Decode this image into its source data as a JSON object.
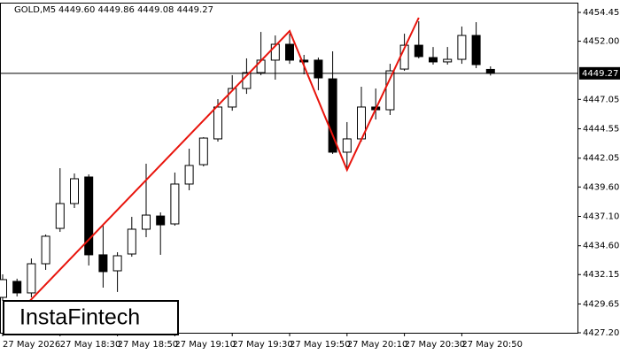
{
  "chart_data": {
    "type": "candlestick",
    "title": "GOLD,M5",
    "quote": "4449.60 4449.86 4449.08 4449.27",
    "logo": "InstaFintech",
    "categories": [
      "27 May 2026",
      null,
      null,
      null,
      "27 May 18:30",
      null,
      null,
      null,
      "27 May 18:50",
      null,
      null,
      null,
      "27 May 19:10",
      null,
      null,
      null,
      "27 May 19:30",
      null,
      null,
      null,
      "27 May 19:50",
      null,
      null,
      null,
      "27 May 20:10",
      null,
      null,
      null,
      "27 May 20:30",
      null,
      null,
      null,
      "27 May 20:50",
      null,
      null
    ],
    "open": [
      4430.21,
      4431.57,
      4430.59,
      4433.07,
      4436.08,
      4438.19,
      4440.45,
      4433.83,
      4432.47,
      4433.9,
      4436.01,
      4437.13,
      4436.46,
      4439.85,
      4441.5,
      4443.69,
      4446.4,
      4447.98,
      4449.33,
      4450.39,
      4451.74,
      4450.39,
      4450.39,
      4448.8,
      4442.56,
      4443.69,
      4446.4,
      4446.17,
      4449.63,
      4451.66,
      4450.61,
      4450.24,
      4450.46,
      4452.49,
      4449.6
    ],
    "high": [
      4432.17,
      4431.8,
      4433.52,
      4435.56,
      4441.2,
      4440.75,
      4440.67,
      4436.31,
      4434.05,
      4437.06,
      4441.58,
      4437.44,
      4440.83,
      4442.86,
      4443.84,
      4447.07,
      4449.11,
      4450.54,
      4452.79,
      4452.49,
      4452.64,
      4450.84,
      4450.61,
      4451.14,
      4445.12,
      4448.13,
      4447.98,
      4450.08,
      4452.64,
      4453.7,
      4451.51,
      4451.51,
      4453.25,
      4453.62,
      4449.86
    ],
    "low": [
      4429.91,
      4430.29,
      4430.21,
      4432.55,
      4435.78,
      4437.81,
      4432.92,
      4431.04,
      4430.67,
      4433.67,
      4435.33,
      4433.83,
      4436.31,
      4439.32,
      4441.35,
      4443.46,
      4446.09,
      4447.52,
      4449.11,
      4448.73,
      4450.08,
      4449.18,
      4447.83,
      4442.41,
      4441.05,
      4443.46,
      4445.34,
      4445.72,
      4449.48,
      4450.54,
      4450.01,
      4450.01,
      4450.08,
      4449.71,
      4449.08
    ],
    "close": [
      4431.72,
      4430.59,
      4433.07,
      4435.41,
      4438.19,
      4440.3,
      4433.83,
      4432.4,
      4433.75,
      4436.01,
      4437.21,
      4436.38,
      4439.85,
      4441.43,
      4443.76,
      4446.4,
      4447.98,
      4449.33,
      4450.39,
      4451.74,
      4450.39,
      4450.24,
      4448.88,
      4442.56,
      4443.69,
      4446.4,
      4446.17,
      4449.48,
      4451.66,
      4450.69,
      4450.24,
      4450.46,
      4452.49,
      4450.01,
      4449.27
    ],
    "up_color": "#ffffff",
    "down_color": "#000000",
    "current_price": {
      "value": 4449.27,
      "label": "4449.27"
    },
    "pattern_line": {
      "color": "#e8140c",
      "x": [
        1,
        20,
        24,
        29
      ],
      "values": [
        4428.78,
        4452.87,
        4441.05,
        4454.0
      ]
    },
    "ylim": [
      4427.2,
      4455.28
    ],
    "yticks": [
      4454.45,
      {
        "value": 4452,
        "label": "4452.00"
      },
      4447.05,
      4444.55,
      4442.05,
      {
        "value": 4439.6,
        "label": "4439.60"
      },
      {
        "value": 4437.1,
        "label": "4437.10"
      },
      {
        "value": 4434.6,
        "label": "4434.60"
      },
      4432.15,
      4429.65,
      {
        "value": 4427.2,
        "label": "4427.20"
      }
    ],
    "grid": false
  }
}
